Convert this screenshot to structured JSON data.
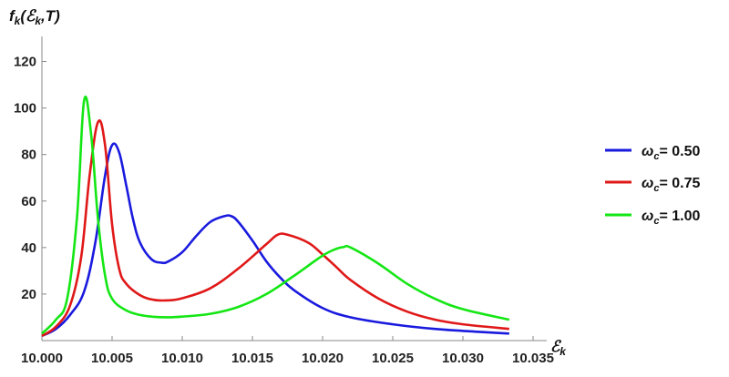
{
  "chart_data": {
    "type": "line",
    "title": "",
    "ylabel": "f_k(ℰ_k,T)",
    "xlabel": "ℰ_k",
    "ylabel_parts": {
      "f": "f",
      "k1": "k",
      "open": "(",
      "E": "ℰ",
      "k2": "k",
      "rest": ",T)"
    },
    "xlabel_parts": {
      "E": "ℰ",
      "k": "k"
    },
    "xlim": [
      10.0,
      10.035
    ],
    "ylim": [
      0,
      130
    ],
    "xticks": [
      "10.000",
      "10.005",
      "10.010",
      "10.015",
      "10.020",
      "10.025",
      "10.030",
      "10.035"
    ],
    "yticks": [
      "20",
      "40",
      "60",
      "80",
      "100",
      "120"
    ],
    "legend_position": "right",
    "series": [
      {
        "name": "ω_c= 0.50",
        "label_parts": {
          "w": "ω",
          "c": "c",
          "rest": "= 0.50"
        },
        "color": "#1a1adf",
        "x": [
          10.0,
          10.001,
          10.002,
          10.003,
          10.0038,
          10.0045,
          10.005,
          10.0055,
          10.006,
          10.0065,
          10.007,
          10.0078,
          10.0085,
          10.009,
          10.01,
          10.011,
          10.012,
          10.013,
          10.0135,
          10.014,
          10.015,
          10.016,
          10.017,
          10.018,
          10.02,
          10.022,
          10.025,
          10.028,
          10.031,
          10.0333
        ],
        "y": [
          2,
          5,
          11,
          21,
          42,
          71,
          84,
          81,
          67,
          52,
          42,
          35,
          33.5,
          34,
          38,
          45,
          51,
          53.5,
          53.5,
          51,
          43,
          34,
          27,
          21.5,
          14,
          10,
          7,
          5,
          3.8,
          3
        ]
      },
      {
        "name": "ω_c= 0.75",
        "label_parts": {
          "w": "ω",
          "c": "c",
          "rest": "= 0.75"
        },
        "color": "#e01818",
        "x": [
          10.0,
          10.001,
          10.002,
          10.0028,
          10.0034,
          10.004,
          10.0045,
          10.005,
          10.0055,
          10.006,
          10.007,
          10.008,
          10.009,
          10.01,
          10.012,
          10.014,
          10.016,
          10.0168,
          10.0175,
          10.019,
          10.02,
          10.021,
          10.022,
          10.024,
          10.026,
          10.028,
          10.03,
          10.0333
        ],
        "y": [
          2,
          6,
          15,
          36,
          71,
          94,
          84,
          50,
          31,
          24.5,
          19.5,
          17.5,
          17.3,
          18.2,
          22.5,
          31,
          41.5,
          45.5,
          45.5,
          42,
          37,
          31.5,
          26,
          18,
          12.5,
          9,
          7,
          5
        ]
      },
      {
        "name": "ω_c= 1.00",
        "label_parts": {
          "w": "ω",
          "c": "c",
          "rest": "= 1.00"
        },
        "color": "#14e614",
        "x": [
          10.0,
          10.001,
          10.0018,
          10.0025,
          10.003,
          10.0035,
          10.004,
          10.0045,
          10.005,
          10.006,
          10.007,
          10.008,
          10.009,
          10.01,
          10.012,
          10.014,
          10.016,
          10.018,
          10.02,
          10.021,
          10.0215,
          10.022,
          10.024,
          10.026,
          10.028,
          10.03,
          10.0333
        ],
        "y": [
          3,
          9,
          18,
          53,
          103,
          89,
          52,
          28,
          18,
          13,
          11,
          10.2,
          10,
          10.3,
          11.5,
          14.5,
          20,
          28,
          36.5,
          39.5,
          40.2,
          40,
          33,
          24.5,
          18,
          13.5,
          9
        ]
      }
    ]
  }
}
